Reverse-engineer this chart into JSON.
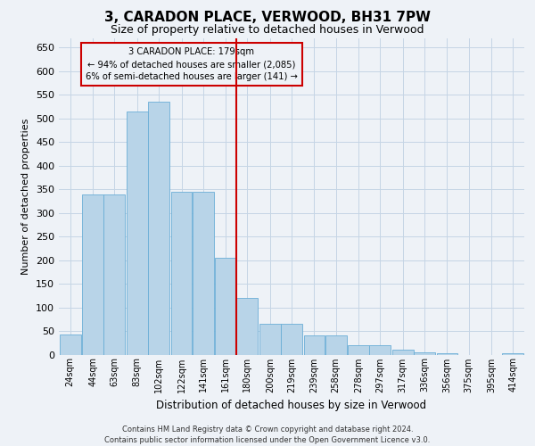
{
  "title": "3, CARADON PLACE, VERWOOD, BH31 7PW",
  "subtitle": "Size of property relative to detached houses in Verwood",
  "xlabel": "Distribution of detached houses by size in Verwood",
  "ylabel": "Number of detached properties",
  "footer_line1": "Contains HM Land Registry data © Crown copyright and database right 2024.",
  "footer_line2": "Contains public sector information licensed under the Open Government Licence v3.0.",
  "annotation_line1": "3 CARADON PLACE: 179sqm",
  "annotation_line2": "← 94% of detached houses are smaller (2,085)",
  "annotation_line3": "6% of semi-detached houses are larger (141) →",
  "bar_color": "#b8d4e8",
  "bar_edge_color": "#6aaed6",
  "vline_color": "#cc0000",
  "vline_x": 180,
  "annotation_box_color": "#cc0000",
  "background_color": "#eef2f7",
  "bins_start": [
    24,
    44,
    63,
    83,
    102,
    122,
    141,
    161,
    180,
    200,
    219,
    239,
    258,
    278,
    297,
    317,
    336,
    356,
    375,
    395,
    414
  ],
  "bin_width": 19,
  "bar_heights": [
    42,
    338,
    338,
    515,
    535,
    345,
    345,
    205,
    120,
    65,
    65,
    40,
    40,
    20,
    20,
    10,
    5,
    3,
    0,
    0,
    3
  ],
  "ylim": [
    0,
    670
  ],
  "yticks": [
    0,
    50,
    100,
    150,
    200,
    250,
    300,
    350,
    400,
    450,
    500,
    550,
    600,
    650
  ],
  "grid_color": "#c5d5e5",
  "title_fontsize": 11,
  "subtitle_fontsize": 9,
  "tick_label_fontsize": 7,
  "footer_fontsize": 6,
  "ylabel_fontsize": 8,
  "xlabel_fontsize": 8.5
}
